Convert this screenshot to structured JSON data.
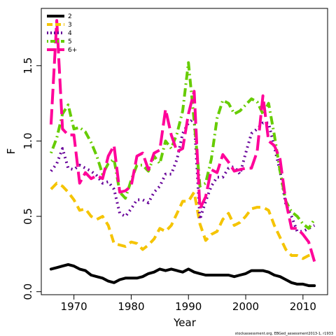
{
  "chart_data": {
    "type": "line",
    "xlabel": "Year",
    "ylabel": "F",
    "xlim": [
      1964.3,
      2014.3
    ],
    "ylim": [
      -0.02,
      1.88
    ],
    "xticks": [
      1970,
      1980,
      1990,
      2000,
      2010
    ],
    "yticks": [
      0.0,
      0.5,
      1.0,
      1.5
    ],
    "ytick_labels": [
      "0.0",
      "0.5",
      "1.0",
      "1.5"
    ],
    "grid": false,
    "legend_position": "top-left",
    "credit": "stockassessment.org, EBGed_assessment2013-1, r1933",
    "x": [
      1966,
      1967,
      1968,
      1969,
      1970,
      1971,
      1972,
      1973,
      1974,
      1975,
      1976,
      1977,
      1978,
      1979,
      1980,
      1981,
      1982,
      1983,
      1984,
      1985,
      1986,
      1987,
      1988,
      1989,
      1990,
      1991,
      1992,
      1993,
      1994,
      1995,
      1996,
      1997,
      1998,
      1999,
      2000,
      2001,
      2002,
      2003,
      2004,
      2005,
      2006,
      2007,
      2008,
      2009,
      2010,
      2011,
      2012
    ],
    "series": [
      {
        "name": "2",
        "color": "#000000",
        "dash": "solid",
        "values": [
          0.15,
          0.16,
          0.17,
          0.18,
          0.17,
          0.15,
          0.14,
          0.11,
          0.1,
          0.09,
          0.07,
          0.06,
          0.08,
          0.09,
          0.09,
          0.09,
          0.1,
          0.12,
          0.13,
          0.15,
          0.14,
          0.15,
          0.14,
          0.13,
          0.15,
          0.13,
          0.12,
          0.11,
          0.11,
          0.11,
          0.11,
          0.11,
          0.1,
          0.11,
          0.12,
          0.14,
          0.14,
          0.14,
          0.13,
          0.11,
          0.1,
          0.08,
          0.06,
          0.05,
          0.05,
          0.04,
          0.04
        ]
      },
      {
        "name": "3",
        "color": "#f5c400",
        "dash": "dashed",
        "values": [
          0.68,
          0.72,
          0.7,
          0.66,
          0.61,
          0.54,
          0.55,
          0.5,
          0.48,
          0.5,
          0.44,
          0.32,
          0.31,
          0.3,
          0.33,
          0.32,
          0.28,
          0.31,
          0.35,
          0.42,
          0.4,
          0.44,
          0.52,
          0.6,
          0.6,
          0.66,
          0.45,
          0.34,
          0.38,
          0.4,
          0.48,
          0.52,
          0.44,
          0.46,
          0.5,
          0.55,
          0.56,
          0.56,
          0.54,
          0.44,
          0.36,
          0.28,
          0.24,
          0.24,
          0.22,
          0.24,
          0.25
        ]
      },
      {
        "name": "4",
        "color": "#660099",
        "dash": "dotted",
        "values": [
          0.8,
          0.85,
          0.95,
          0.82,
          0.81,
          0.84,
          0.82,
          0.8,
          0.77,
          0.72,
          0.73,
          0.68,
          0.52,
          0.5,
          0.55,
          0.61,
          0.61,
          0.59,
          0.66,
          0.7,
          0.78,
          0.78,
          0.88,
          1.05,
          1.12,
          1.15,
          0.48,
          0.6,
          0.7,
          0.76,
          0.76,
          0.82,
          0.83,
          0.78,
          0.92,
          1.05,
          1.08,
          1.12,
          1.12,
          0.96,
          0.8,
          0.58,
          0.5,
          0.4,
          0.4,
          0.42,
          0.44
        ]
      },
      {
        "name": "5",
        "color": "#66cc00",
        "dash": "dotdash",
        "values": [
          0.92,
          1.02,
          1.18,
          1.24,
          1.08,
          1.09,
          1.06,
          0.99,
          0.9,
          0.78,
          0.85,
          0.88,
          0.66,
          0.62,
          0.74,
          0.84,
          0.84,
          0.8,
          0.9,
          0.85,
          1.0,
          0.95,
          1.05,
          1.2,
          1.52,
          1.13,
          0.7,
          0.72,
          0.88,
          1.15,
          1.27,
          1.25,
          1.18,
          1.2,
          1.24,
          1.28,
          1.26,
          1.18,
          1.25,
          1.04,
          0.8,
          0.6,
          0.53,
          0.5,
          0.45,
          0.42,
          0.48
        ]
      },
      {
        "name": "6+",
        "color": "#ff0099",
        "dash": "longdash",
        "values": [
          1.11,
          1.8,
          1.08,
          1.04,
          1.04,
          0.72,
          0.79,
          0.75,
          0.77,
          0.75,
          0.9,
          0.97,
          0.66,
          0.67,
          0.7,
          0.9,
          0.92,
          0.81,
          0.92,
          0.94,
          1.21,
          1.04,
          0.93,
          0.95,
          1.18,
          1.33,
          0.55,
          0.63,
          0.81,
          0.79,
          0.91,
          0.86,
          0.8,
          0.81,
          0.82,
          0.82,
          0.93,
          1.3,
          1.0,
          0.97,
          0.88,
          0.6,
          0.42,
          0.42,
          0.38,
          0.33,
          0.2
        ]
      }
    ]
  }
}
